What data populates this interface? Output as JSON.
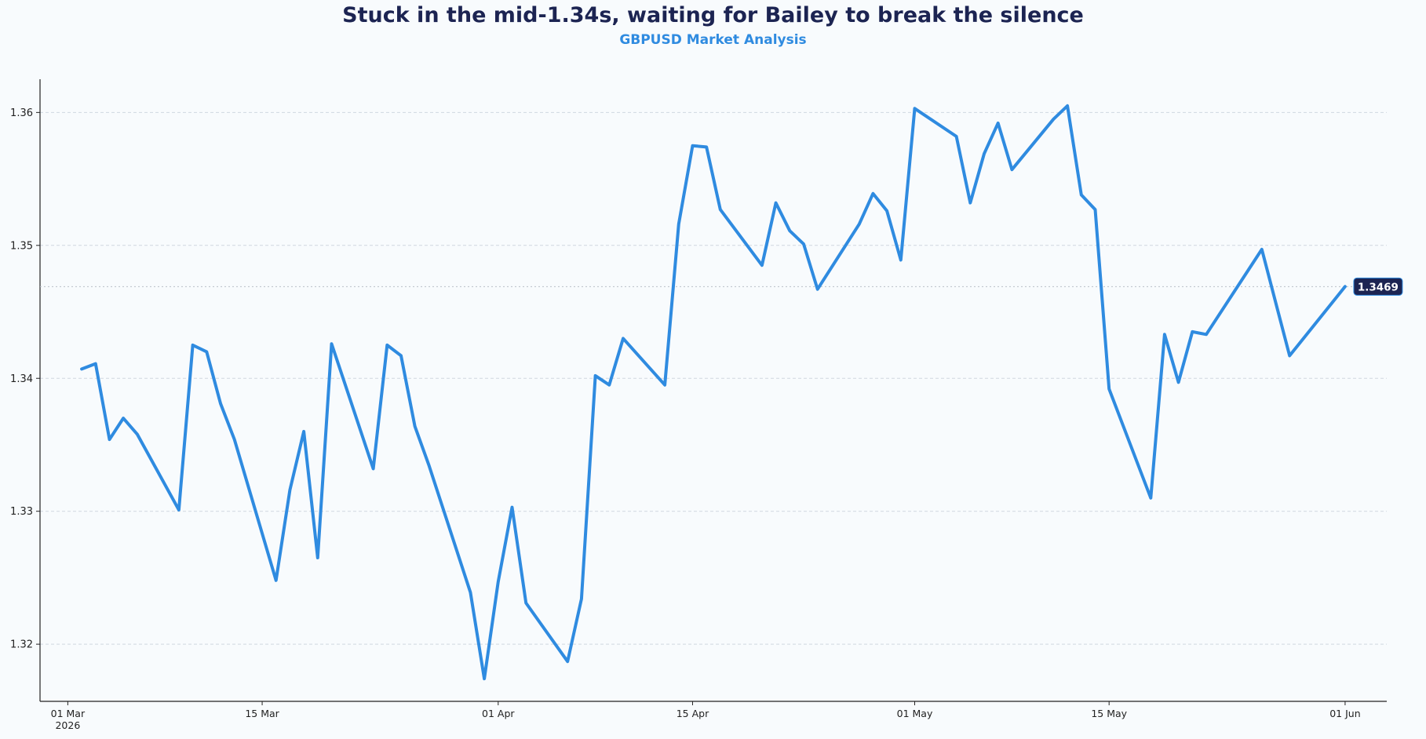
{
  "chart_data": {
    "type": "line",
    "title": "Stuck in the mid-1.34s, waiting for Bailey to break the silence",
    "subtitle": "GBPUSD Market Analysis",
    "xlabel": "",
    "ylabel": "",
    "x_range": [
      "2026-02-27",
      "2026-06-04"
    ],
    "ylim": [
      1.3157,
      1.3625
    ],
    "y_ticks": [
      1.32,
      1.33,
      1.34,
      1.35,
      1.36
    ],
    "y_tick_labels": [
      "1.32",
      "1.33",
      "1.34",
      "1.35",
      "1.36"
    ],
    "x_ticks": [
      "2026-03-01",
      "2026-03-15",
      "2026-04-01",
      "2026-04-15",
      "2026-05-01",
      "2026-05-15",
      "2026-06-01"
    ],
    "x_tick_labels": [
      "01 Mar",
      "15 Mar",
      "01 Apr",
      "15 Apr",
      "01 May",
      "15 May",
      "01 Jun"
    ],
    "x_year_label": "2026",
    "grid": "horizontal dashed",
    "last_value_label": "1.3469",
    "series": [
      {
        "color": "#2f8be0",
        "x": [
          "2026-03-02",
          "2026-03-03",
          "2026-03-04",
          "2026-03-05",
          "2026-03-06",
          "2026-03-09",
          "2026-03-10",
          "2026-03-11",
          "2026-03-12",
          "2026-03-13",
          "2026-03-16",
          "2026-03-17",
          "2026-03-18",
          "2026-03-19",
          "2026-03-20",
          "2026-03-23",
          "2026-03-24",
          "2026-03-25",
          "2026-03-26",
          "2026-03-27",
          "2026-03-30",
          "2026-03-31",
          "2026-04-01",
          "2026-04-02",
          "2026-04-03",
          "2026-04-06",
          "2026-04-07",
          "2026-04-08",
          "2026-04-09",
          "2026-04-10",
          "2026-04-13",
          "2026-04-14",
          "2026-04-15",
          "2026-04-16",
          "2026-04-17",
          "2026-04-20",
          "2026-04-21",
          "2026-04-22",
          "2026-04-23",
          "2026-04-24",
          "2026-04-27",
          "2026-04-28",
          "2026-04-29",
          "2026-04-30",
          "2026-05-01",
          "2026-05-04",
          "2026-05-05",
          "2026-05-06",
          "2026-05-07",
          "2026-05-08",
          "2026-05-11",
          "2026-05-12",
          "2026-05-13",
          "2026-05-14",
          "2026-05-15",
          "2026-05-18",
          "2026-05-19",
          "2026-05-20",
          "2026-05-21",
          "2026-05-22",
          "2026-05-25",
          "2026-05-26",
          "2026-05-27",
          "2026-05-28",
          "2026-06-01"
        ],
        "y": [
          1.3407,
          1.3411,
          1.3354,
          1.337,
          1.3358,
          1.3301,
          1.3425,
          1.342,
          1.3381,
          1.3354,
          1.3248,
          1.3316,
          1.336,
          1.3265,
          1.3426,
          1.3332,
          1.3425,
          1.3417,
          1.3364,
          1.3335,
          1.3239,
          1.3174,
          1.3247,
          1.3303,
          1.3231,
          1.3187,
          1.3234,
          1.3402,
          1.3395,
          1.343,
          1.3395,
          1.3516,
          1.3575,
          1.3574,
          1.3527,
          1.3485,
          1.3532,
          1.3511,
          1.3501,
          1.3467,
          1.3516,
          1.3539,
          1.3526,
          1.3489,
          1.3603,
          1.3582,
          1.3532,
          1.3569,
          1.3592,
          1.3557,
          1.3595,
          1.3605,
          1.3538,
          1.3527,
          1.3392,
          1.331,
          1.3433,
          1.3397,
          1.3435,
          1.3433,
          1.3481,
          1.3497,
          1.3457,
          1.3417,
          1.3469
        ]
      }
    ]
  }
}
